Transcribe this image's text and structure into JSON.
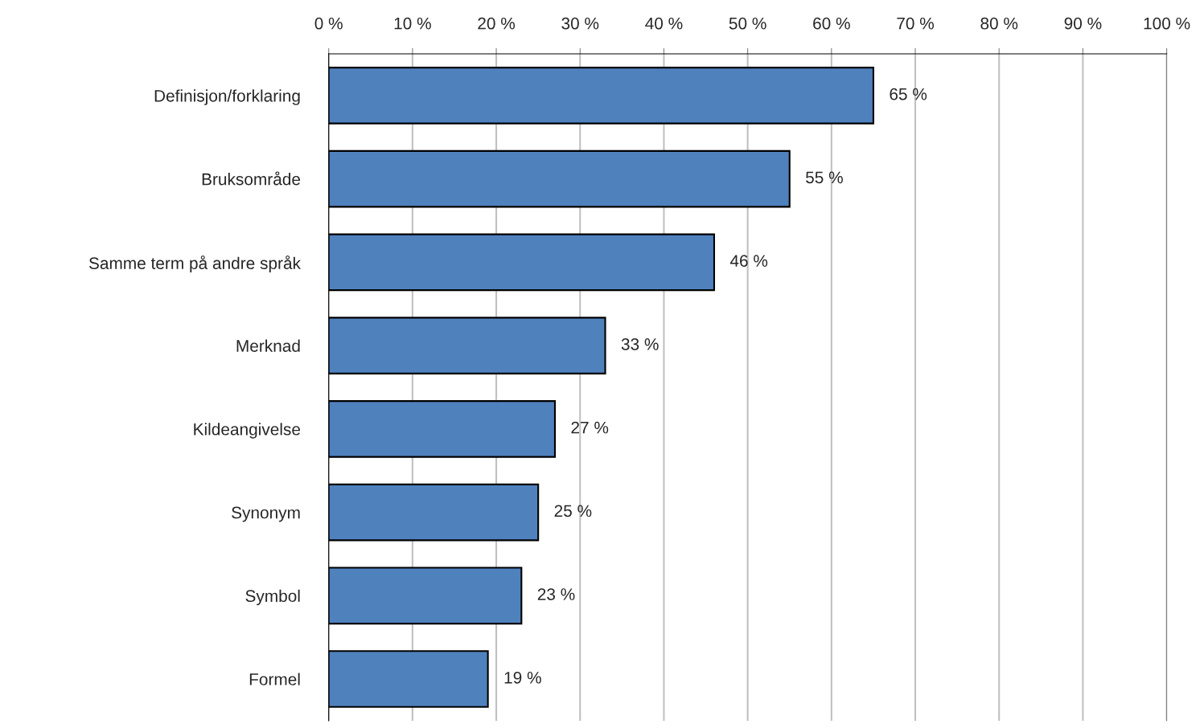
{
  "chart_data": {
    "type": "bar",
    "orientation": "horizontal",
    "categories": [
      "Definisjon/forklaring",
      "Bruksområde",
      "Samme term på andre språk",
      "Merknad",
      "Kildeangivelse",
      "Synonym",
      "Symbol",
      "Formel"
    ],
    "values": [
      65,
      55,
      46,
      33,
      27,
      25,
      23,
      19
    ],
    "value_labels": [
      "65 %",
      "55 %",
      "46 %",
      "33 %",
      "27 %",
      "25 %",
      "23 %",
      "19 %"
    ],
    "color": "#4f81bd",
    "xlim": [
      0,
      100
    ],
    "xticks": [
      {
        "value": 0,
        "label": "0 %"
      },
      {
        "value": 10,
        "label": "10 %"
      },
      {
        "value": 20,
        "label": "20 %"
      },
      {
        "value": 30,
        "label": "30 %"
      },
      {
        "value": 40,
        "label": "40 %"
      },
      {
        "value": 50,
        "label": "50 %"
      },
      {
        "value": 60,
        "label": "60 %"
      },
      {
        "value": 70,
        "label": "70 %"
      },
      {
        "value": 80,
        "label": "80 %"
      },
      {
        "value": 90,
        "label": "90 %"
      },
      {
        "value": 100,
        "label": "100 %"
      }
    ],
    "grid": "x"
  }
}
